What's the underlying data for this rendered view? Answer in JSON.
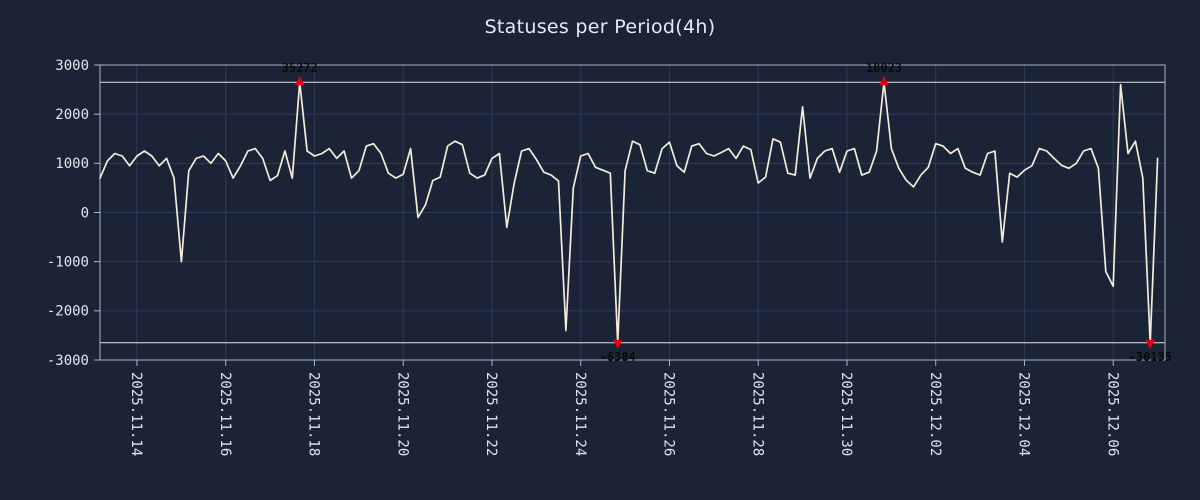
{
  "title": "Statuses per Period(4h)",
  "colors": {
    "background": "#1b2437",
    "title_text": "#e8eaf0",
    "tick_text": "#e2e5ec",
    "grid": "#303c55",
    "plot_border": "#aab4c8",
    "clip_line": "#dde2ec",
    "series_line": "#f3ecd9",
    "extreme_marker": "#e3000f",
    "extreme_label": "#0a0a0a"
  },
  "chart_data": {
    "type": "line",
    "title": "Statuses per Period(4h)",
    "ylabel": "",
    "xlabel": "",
    "ylim": [
      -3000,
      3000
    ],
    "y_ticks": [
      3000,
      2000,
      1000,
      0,
      -1000,
      -2000,
      -3000
    ],
    "clip_value": 2650,
    "points_per_day": 6,
    "x_days_total": 24,
    "grid": true,
    "x_ticks": [
      {
        "label": "2025.11.14",
        "day": 0.833
      },
      {
        "label": "2025.11.16",
        "day": 2.833
      },
      {
        "label": "2025.11.18",
        "day": 4.833
      },
      {
        "label": "2025.11.20",
        "day": 6.833
      },
      {
        "label": "2025.11.22",
        "day": 8.833
      },
      {
        "label": "2025.11.24",
        "day": 10.833
      },
      {
        "label": "2025.11.26",
        "day": 12.833
      },
      {
        "label": "2025.11.28",
        "day": 14.833
      },
      {
        "label": "2025.11.30",
        "day": 16.833
      },
      {
        "label": "2025.12.02",
        "day": 18.833
      },
      {
        "label": "2025.12.04",
        "day": 20.833
      },
      {
        "label": "2025.12.06",
        "day": 22.833
      }
    ],
    "annotated_extremes": [
      35272,
      -6384,
      18023,
      -30135
    ],
    "values": [
      700,
      1050,
      1200,
      1150,
      950,
      1150,
      1250,
      1150,
      950,
      1100,
      700,
      -1000,
      850,
      1100,
      1150,
      1000,
      1200,
      1050,
      700,
      950,
      1250,
      1300,
      1100,
      650,
      750,
      1250,
      700,
      35272,
      1250,
      1150,
      1200,
      1300,
      1100,
      1250,
      700,
      850,
      1350,
      1400,
      1200,
      800,
      700,
      780,
      1300,
      -100,
      150,
      650,
      720,
      1350,
      1450,
      1380,
      800,
      700,
      760,
      1100,
      1200,
      -300,
      600,
      1250,
      1300,
      1080,
      820,
      760,
      640,
      -2400,
      500,
      1150,
      1200,
      920,
      860,
      800,
      -6384,
      850,
      1450,
      1380,
      850,
      800,
      1300,
      1430,
      950,
      820,
      1350,
      1400,
      1200,
      1150,
      1220,
      1300,
      1100,
      1350,
      1280,
      600,
      720,
      1500,
      1430,
      800,
      760,
      2150,
      700,
      1100,
      1250,
      1300,
      820,
      1250,
      1300,
      760,
      820,
      1250,
      18023,
      1300,
      900,
      660,
      520,
      760,
      920,
      1400,
      1350,
      1200,
      1300,
      900,
      820,
      760,
      1200,
      1250,
      -600,
      800,
      720,
      860,
      950,
      1300,
      1250,
      1100,
      960,
      900,
      1000,
      1250,
      1300,
      900,
      -1200,
      -1500,
      2600,
      1200,
      1450,
      700,
      -30135,
      1100
    ]
  }
}
